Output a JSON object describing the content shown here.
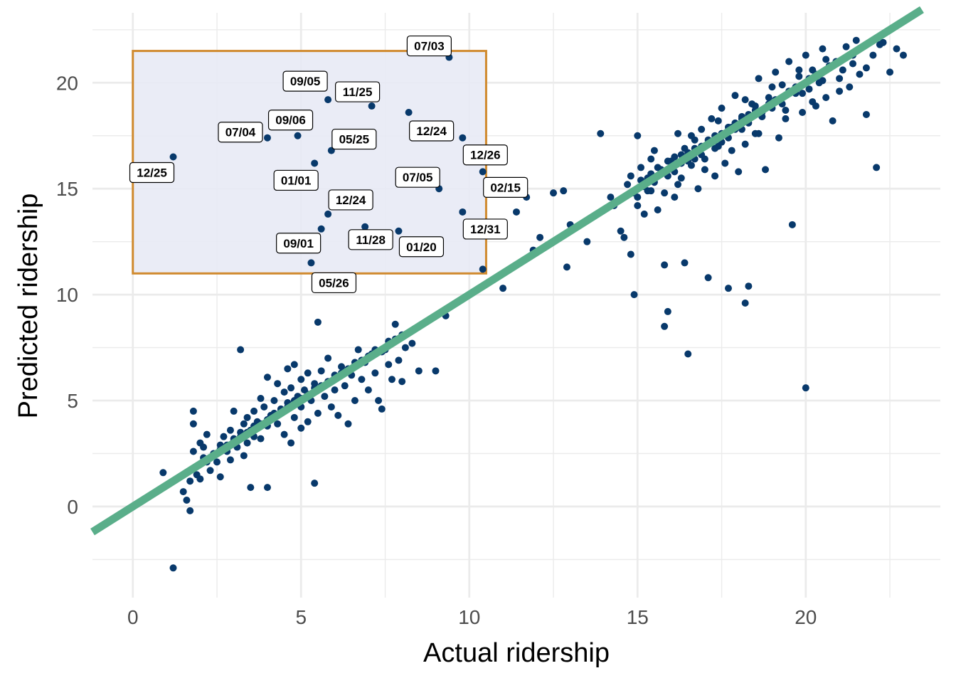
{
  "chart_data": {
    "type": "scatter",
    "title": "",
    "xlabel": "Actual ridership",
    "ylabel": "Predicted ridership",
    "xlim": [
      -1.2,
      24.0
    ],
    "ylim": [
      -4.3,
      23.3
    ],
    "x_ticks": [
      0,
      5,
      10,
      15,
      20
    ],
    "y_ticks": [
      0,
      5,
      10,
      15,
      20
    ],
    "grid": true,
    "colors": {
      "points": "#08396b",
      "fit_line": "#5aae8a",
      "box_border": "#d08a2e",
      "box_fill": "#e8eaf5",
      "grid": "#ebebeb"
    },
    "reference_line": {
      "slope": 1,
      "intercept": 0
    },
    "highlight_box": {
      "x": [
        0,
        10.5
      ],
      "y": [
        11.0,
        21.5
      ]
    },
    "labeled_points": [
      {
        "label": "12/25",
        "x": 1.2,
        "y": 16.5
      },
      {
        "label": "07/04",
        "x": 4.0,
        "y": 17.4
      },
      {
        "label": "09/06",
        "x": 4.9,
        "y": 17.5
      },
      {
        "label": "09/05",
        "x": 5.8,
        "y": 19.2
      },
      {
        "label": "11/25",
        "x": 7.1,
        "y": 18.9
      },
      {
        "label": "05/25",
        "x": 5.9,
        "y": 16.8
      },
      {
        "label": "01/01",
        "x": 5.4,
        "y": 16.2
      },
      {
        "label": "07/03",
        "x": 9.4,
        "y": 21.2
      },
      {
        "label": "12/24",
        "x": 8.2,
        "y": 18.6
      },
      {
        "label": "12/26",
        "x": 9.8,
        "y": 17.4
      },
      {
        "label": "07/05",
        "x": 9.1,
        "y": 15.0
      },
      {
        "label": "02/15",
        "x": 10.4,
        "y": 15.8
      },
      {
        "label": "12/24",
        "x": 5.8,
        "y": 13.8
      },
      {
        "label": "12/31",
        "x": 9.8,
        "y": 13.9
      },
      {
        "label": "09/01",
        "x": 5.6,
        "y": 13.1
      },
      {
        "label": "11/28",
        "x": 6.9,
        "y": 13.2
      },
      {
        "label": "01/20",
        "x": 7.9,
        "y": 13.0
      },
      {
        "label": "05/26",
        "x": 5.3,
        "y": 11.5
      }
    ],
    "points": [
      [
        0.9,
        1.6
      ],
      [
        1.2,
        -2.9
      ],
      [
        1.5,
        0.7
      ],
      [
        1.6,
        0.3
      ],
      [
        1.7,
        -0.2
      ],
      [
        1.7,
        1.2
      ],
      [
        1.8,
        1.8
      ],
      [
        1.8,
        2.6
      ],
      [
        1.8,
        4.5
      ],
      [
        1.8,
        3.9
      ],
      [
        1.9,
        1.5
      ],
      [
        2.0,
        2.0
      ],
      [
        2.0,
        3.0
      ],
      [
        2.0,
        1.3
      ],
      [
        2.1,
        2.8
      ],
      [
        2.1,
        2.3
      ],
      [
        2.2,
        3.4
      ],
      [
        2.3,
        1.7
      ],
      [
        2.4,
        2.5
      ],
      [
        2.5,
        2.1
      ],
      [
        2.6,
        2.9
      ],
      [
        2.6,
        1.4
      ],
      [
        2.7,
        3.3
      ],
      [
        2.8,
        2.6
      ],
      [
        2.9,
        3.6
      ],
      [
        2.9,
        2.2
      ],
      [
        3.0,
        3.1
      ],
      [
        3.0,
        4.5
      ],
      [
        3.1,
        2.8
      ],
      [
        3.2,
        3.5
      ],
      [
        3.2,
        7.4
      ],
      [
        3.3,
        3.9
      ],
      [
        3.3,
        2.4
      ],
      [
        3.4,
        4.2
      ],
      [
        3.4,
        3.0
      ],
      [
        3.5,
        0.9
      ],
      [
        3.5,
        3.6
      ],
      [
        3.6,
        4.5
      ],
      [
        3.6,
        3.3
      ],
      [
        3.7,
        4.0
      ],
      [
        3.8,
        5.1
      ],
      [
        3.8,
        3.2
      ],
      [
        3.9,
        4.7
      ],
      [
        4.0,
        0.9
      ],
      [
        4.0,
        3.8
      ],
      [
        4.0,
        6.1
      ],
      [
        4.1,
        4.3
      ],
      [
        4.2,
        5.0
      ],
      [
        4.3,
        3.9
      ],
      [
        4.3,
        5.8
      ],
      [
        4.4,
        4.6
      ],
      [
        4.5,
        5.4
      ],
      [
        4.5,
        3.4
      ],
      [
        4.6,
        6.5
      ],
      [
        4.6,
        4.9
      ],
      [
        4.7,
        3.0
      ],
      [
        4.7,
        5.6
      ],
      [
        4.8,
        4.2
      ],
      [
        4.8,
        6.7
      ],
      [
        4.9,
        5.2
      ],
      [
        5.0,
        3.7
      ],
      [
        5.0,
        6.0
      ],
      [
        5.0,
        4.7
      ],
      [
        5.1,
        5.5
      ],
      [
        5.2,
        4.0
      ],
      [
        5.2,
        6.3
      ],
      [
        5.3,
        5.0
      ],
      [
        5.4,
        1.1
      ],
      [
        5.4,
        5.8
      ],
      [
        5.5,
        4.4
      ],
      [
        5.5,
        8.7
      ],
      [
        5.6,
        6.4
      ],
      [
        5.7,
        5.2
      ],
      [
        5.8,
        7.0
      ],
      [
        5.9,
        4.7
      ],
      [
        6.0,
        6.0
      ],
      [
        6.0,
        5.5
      ],
      [
        6.1,
        4.3
      ],
      [
        6.2,
        6.6
      ],
      [
        6.3,
        5.7
      ],
      [
        6.4,
        3.9
      ],
      [
        6.5,
        6.2
      ],
      [
        6.6,
        5.0
      ],
      [
        6.7,
        7.4
      ],
      [
        6.8,
        6.0
      ],
      [
        6.9,
        6.8
      ],
      [
        7.0,
        5.5
      ],
      [
        7.1,
        7.2
      ],
      [
        7.2,
        6.3
      ],
      [
        7.3,
        5.0
      ],
      [
        7.4,
        4.6
      ],
      [
        7.5,
        7.4
      ],
      [
        7.6,
        6.7
      ],
      [
        7.7,
        6.0
      ],
      [
        7.8,
        8.6
      ],
      [
        7.9,
        6.9
      ],
      [
        8.0,
        5.9
      ],
      [
        8.1,
        7.5
      ],
      [
        8.3,
        7.7
      ],
      [
        8.5,
        6.4
      ],
      [
        8.8,
        8.8
      ],
      [
        9.0,
        6.4
      ],
      [
        9.3,
        9.0
      ],
      [
        10.4,
        11.2
      ],
      [
        11.0,
        10.3
      ],
      [
        11.4,
        13.9
      ],
      [
        11.7,
        14.6
      ],
      [
        11.9,
        12.1
      ],
      [
        12.1,
        12.7
      ],
      [
        12.5,
        14.8
      ],
      [
        12.8,
        14.9
      ],
      [
        12.9,
        11.3
      ],
      [
        13.0,
        13.3
      ],
      [
        13.5,
        12.5
      ],
      [
        13.9,
        17.6
      ],
      [
        14.2,
        14.6
      ],
      [
        14.3,
        14.2
      ],
      [
        14.5,
        13.0
      ],
      [
        14.6,
        12.7
      ],
      [
        14.7,
        15.2
      ],
      [
        14.8,
        11.9
      ],
      [
        14.9,
        10.0
      ],
      [
        15.0,
        14.6
      ],
      [
        15.0,
        17.5
      ],
      [
        15.1,
        16.0
      ],
      [
        15.2,
        13.8
      ],
      [
        15.3,
        15.5
      ],
      [
        15.4,
        14.9
      ],
      [
        15.5,
        16.8
      ],
      [
        15.6,
        14.0
      ],
      [
        15.7,
        15.8
      ],
      [
        15.8,
        8.5
      ],
      [
        15.8,
        11.4
      ],
      [
        15.9,
        9.2
      ],
      [
        16.0,
        16.3
      ],
      [
        16.1,
        14.6
      ],
      [
        16.2,
        17.6
      ],
      [
        16.3,
        15.5
      ],
      [
        16.4,
        16.9
      ],
      [
        16.4,
        11.5
      ],
      [
        16.5,
        7.2
      ],
      [
        16.6,
        16.1
      ],
      [
        16.7,
        17.3
      ],
      [
        16.8,
        15.0
      ],
      [
        16.9,
        17.8
      ],
      [
        17.0,
        16.4
      ],
      [
        17.1,
        10.8
      ],
      [
        17.2,
        18.3
      ],
      [
        17.3,
        15.6
      ],
      [
        17.4,
        17.0
      ],
      [
        17.5,
        18.8
      ],
      [
        17.6,
        16.2
      ],
      [
        17.7,
        10.3
      ],
      [
        17.8,
        17.9
      ],
      [
        17.9,
        19.4
      ],
      [
        18.0,
        15.8
      ],
      [
        18.1,
        18.3
      ],
      [
        18.2,
        9.6
      ],
      [
        18.2,
        17.1
      ],
      [
        18.3,
        10.4
      ],
      [
        18.4,
        19.0
      ],
      [
        18.5,
        17.6
      ],
      [
        18.6,
        20.2
      ],
      [
        18.7,
        18.4
      ],
      [
        18.8,
        15.9
      ],
      [
        18.9,
        19.3
      ],
      [
        19.0,
        18.8
      ],
      [
        19.1,
        20.5
      ],
      [
        19.2,
        17.4
      ],
      [
        19.3,
        19.9
      ],
      [
        19.4,
        18.7
      ],
      [
        19.5,
        21.0
      ],
      [
        19.6,
        13.3
      ],
      [
        19.7,
        19.5
      ],
      [
        19.8,
        20.3
      ],
      [
        19.9,
        18.6
      ],
      [
        20.0,
        5.6
      ],
      [
        20.0,
        21.3
      ],
      [
        20.1,
        19.7
      ],
      [
        20.2,
        20.6
      ],
      [
        20.3,
        18.9
      ],
      [
        20.4,
        20.0
      ],
      [
        20.5,
        21.6
      ],
      [
        20.6,
        19.3
      ],
      [
        20.7,
        20.8
      ],
      [
        20.8,
        18.2
      ],
      [
        20.9,
        21.0
      ],
      [
        21.0,
        20.2
      ],
      [
        21.2,
        21.7
      ],
      [
        21.3,
        19.8
      ],
      [
        21.4,
        20.9
      ],
      [
        21.5,
        22.0
      ],
      [
        21.6,
        20.4
      ],
      [
        21.8,
        18.5
      ],
      [
        22.0,
        21.3
      ],
      [
        22.1,
        16.0
      ],
      [
        22.3,
        21.9
      ],
      [
        22.5,
        20.5
      ],
      [
        22.7,
        21.6
      ],
      [
        22.9,
        21.3
      ],
      [
        15.2,
        15.1
      ],
      [
        15.4,
        15.7
      ],
      [
        15.6,
        16.0
      ],
      [
        15.9,
        15.6
      ],
      [
        16.1,
        16.5
      ],
      [
        16.3,
        16.2
      ],
      [
        16.5,
        16.7
      ],
      [
        16.7,
        16.4
      ],
      [
        16.9,
        17.0
      ],
      [
        17.1,
        17.3
      ],
      [
        17.3,
        17.5
      ],
      [
        17.5,
        17.2
      ],
      [
        17.7,
        17.9
      ],
      [
        17.9,
        18.1
      ],
      [
        18.1,
        17.8
      ],
      [
        18.3,
        18.5
      ],
      [
        18.5,
        18.7
      ],
      [
        18.7,
        18.4
      ],
      [
        18.9,
        19.0
      ],
      [
        19.1,
        19.2
      ],
      [
        19.3,
        19.0
      ],
      [
        19.5,
        19.6
      ],
      [
        19.7,
        19.8
      ],
      [
        19.9,
        19.5
      ],
      [
        20.1,
        20.2
      ],
      [
        20.3,
        20.4
      ],
      [
        20.5,
        20.1
      ],
      [
        20.7,
        20.7
      ],
      [
        20.9,
        20.9
      ],
      [
        21.1,
        20.6
      ],
      [
        14.9,
        14.8
      ],
      [
        15.1,
        15.4
      ],
      [
        15.3,
        14.9
      ],
      [
        15.5,
        15.3
      ],
      [
        15.7,
        15.9
      ],
      [
        15.9,
        16.3
      ],
      [
        16.1,
        15.8
      ],
      [
        16.3,
        16.6
      ],
      [
        16.5,
        16.3
      ],
      [
        16.7,
        16.9
      ],
      [
        16.9,
        16.6
      ],
      [
        17.1,
        17.1
      ],
      [
        17.3,
        16.9
      ],
      [
        17.5,
        17.6
      ],
      [
        17.7,
        17.4
      ],
      [
        17.9,
        17.8
      ],
      [
        18.1,
        18.4
      ],
      [
        18.3,
        18.1
      ],
      [
        18.5,
        18.9
      ],
      [
        18.7,
        18.6
      ],
      [
        2.2,
        2.1
      ],
      [
        2.4,
        2.4
      ],
      [
        2.6,
        2.7
      ],
      [
        2.8,
        2.9
      ],
      [
        3.0,
        3.2
      ],
      [
        3.2,
        3.3
      ],
      [
        3.4,
        3.5
      ],
      [
        3.6,
        3.8
      ],
      [
        3.8,
        3.9
      ],
      [
        4.0,
        4.1
      ],
      [
        4.2,
        4.4
      ],
      [
        4.4,
        4.5
      ],
      [
        4.6,
        4.7
      ],
      [
        4.8,
        5.0
      ],
      [
        5.0,
        5.1
      ],
      [
        5.2,
        5.3
      ],
      [
        5.4,
        5.6
      ],
      [
        5.6,
        5.7
      ],
      [
        5.8,
        5.9
      ],
      [
        6.0,
        6.2
      ],
      [
        6.2,
        6.3
      ],
      [
        6.4,
        6.5
      ],
      [
        6.6,
        6.8
      ],
      [
        6.8,
        6.9
      ],
      [
        7.0,
        7.1
      ],
      [
        7.2,
        7.4
      ],
      [
        7.4,
        7.3
      ],
      [
        7.6,
        7.8
      ],
      [
        7.8,
        7.9
      ],
      [
        8.0,
        8.1
      ],
      [
        14.8,
        15.6
      ],
      [
        15.0,
        14.2
      ],
      [
        15.4,
        16.4
      ],
      [
        15.8,
        14.8
      ],
      [
        16.2,
        15.2
      ],
      [
        16.6,
        17.5
      ],
      [
        17.0,
        15.9
      ],
      [
        17.4,
        18.2
      ],
      [
        17.8,
        16.8
      ],
      [
        18.2,
        19.2
      ],
      [
        18.6,
        17.6
      ],
      [
        19.0,
        19.8
      ],
      [
        19.4,
        18.3
      ],
      [
        19.8,
        20.6
      ],
      [
        20.2,
        19.1
      ],
      [
        20.6,
        21.1
      ],
      [
        21.0,
        19.6
      ],
      [
        21.4,
        21.3
      ],
      [
        21.8,
        20.7
      ],
      [
        22.2,
        21.8
      ]
    ]
  }
}
